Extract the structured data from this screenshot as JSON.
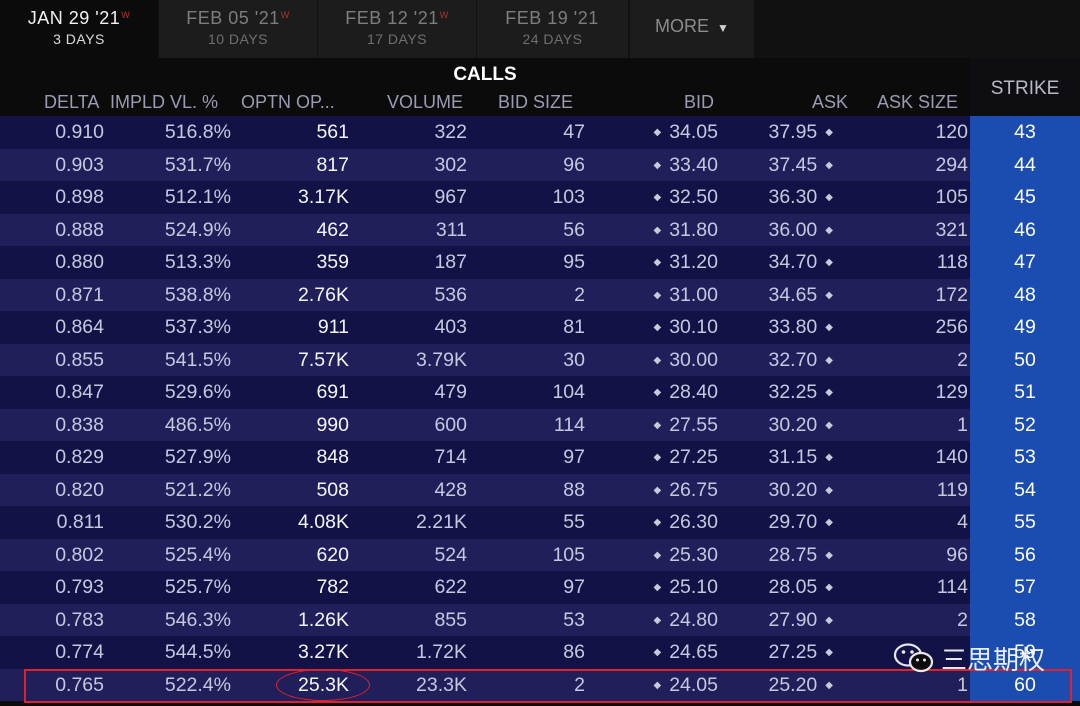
{
  "tabs": [
    {
      "date": "JAN 29 '21",
      "flag": "W",
      "days": "3 DAYS"
    },
    {
      "date": "FEB 05 '21",
      "flag": "W",
      "days": "10 DAYS"
    },
    {
      "date": "FEB 12 '21",
      "flag": "W",
      "days": "17 DAYS"
    },
    {
      "date": "FEB 19 '21",
      "flag": "",
      "days": "24 DAYS"
    }
  ],
  "more_label": "MORE",
  "section_title": "CALLS",
  "headers": {
    "delta": "DELTA",
    "impl_vol": "IMPLD VL. %",
    "open_int": "OPTN OP...",
    "volume": "VOLUME",
    "bid_size": "BID SIZE",
    "bid": "BID",
    "ask": "ASK",
    "ask_size": "ASK SIZE",
    "strike": "STRIKE"
  },
  "rows": [
    {
      "delta": "0.910",
      "iv": "516.8%",
      "oi": "561",
      "vol": "322",
      "bid_size": "47",
      "bid": "34.05",
      "ask": "37.95",
      "ask_size": "120",
      "strike": "43"
    },
    {
      "delta": "0.903",
      "iv": "531.7%",
      "oi": "817",
      "vol": "302",
      "bid_size": "96",
      "bid": "33.40",
      "ask": "37.45",
      "ask_size": "294",
      "strike": "44"
    },
    {
      "delta": "0.898",
      "iv": "512.1%",
      "oi": "3.17K",
      "vol": "967",
      "bid_size": "103",
      "bid": "32.50",
      "ask": "36.30",
      "ask_size": "105",
      "strike": "45"
    },
    {
      "delta": "0.888",
      "iv": "524.9%",
      "oi": "462",
      "vol": "311",
      "bid_size": "56",
      "bid": "31.80",
      "ask": "36.00",
      "ask_size": "321",
      "strike": "46"
    },
    {
      "delta": "0.880",
      "iv": "513.3%",
      "oi": "359",
      "vol": "187",
      "bid_size": "95",
      "bid": "31.20",
      "ask": "34.70",
      "ask_size": "118",
      "strike": "47"
    },
    {
      "delta": "0.871",
      "iv": "538.8%",
      "oi": "2.76K",
      "vol": "536",
      "bid_size": "2",
      "bid": "31.00",
      "ask": "34.65",
      "ask_size": "172",
      "strike": "48"
    },
    {
      "delta": "0.864",
      "iv": "537.3%",
      "oi": "911",
      "vol": "403",
      "bid_size": "81",
      "bid": "30.10",
      "ask": "33.80",
      "ask_size": "256",
      "strike": "49"
    },
    {
      "delta": "0.855",
      "iv": "541.5%",
      "oi": "7.57K",
      "vol": "3.79K",
      "bid_size": "30",
      "bid": "30.00",
      "ask": "32.70",
      "ask_size": "2",
      "strike": "50"
    },
    {
      "delta": "0.847",
      "iv": "529.6%",
      "oi": "691",
      "vol": "479",
      "bid_size": "104",
      "bid": "28.40",
      "ask": "32.25",
      "ask_size": "129",
      "strike": "51"
    },
    {
      "delta": "0.838",
      "iv": "486.5%",
      "oi": "990",
      "vol": "600",
      "bid_size": "114",
      "bid": "27.55",
      "ask": "30.20",
      "ask_size": "1",
      "strike": "52"
    },
    {
      "delta": "0.829",
      "iv": "527.9%",
      "oi": "848",
      "vol": "714",
      "bid_size": "97",
      "bid": "27.25",
      "ask": "31.15",
      "ask_size": "140",
      "strike": "53"
    },
    {
      "delta": "0.820",
      "iv": "521.2%",
      "oi": "508",
      "vol": "428",
      "bid_size": "88",
      "bid": "26.75",
      "ask": "30.20",
      "ask_size": "119",
      "strike": "54"
    },
    {
      "delta": "0.811",
      "iv": "530.2%",
      "oi": "4.08K",
      "vol": "2.21K",
      "bid_size": "55",
      "bid": "26.30",
      "ask": "29.70",
      "ask_size": "4",
      "strike": "55"
    },
    {
      "delta": "0.802",
      "iv": "525.4%",
      "oi": "620",
      "vol": "524",
      "bid_size": "105",
      "bid": "25.30",
      "ask": "28.75",
      "ask_size": "96",
      "strike": "56"
    },
    {
      "delta": "0.793",
      "iv": "525.7%",
      "oi": "782",
      "vol": "622",
      "bid_size": "97",
      "bid": "25.10",
      "ask": "28.05",
      "ask_size": "114",
      "strike": "57"
    },
    {
      "delta": "0.783",
      "iv": "546.3%",
      "oi": "1.26K",
      "vol": "855",
      "bid_size": "53",
      "bid": "24.80",
      "ask": "27.90",
      "ask_size": "2",
      "strike": "58"
    },
    {
      "delta": "0.774",
      "iv": "544.5%",
      "oi": "3.27K",
      "vol": "1.72K",
      "bid_size": "86",
      "bid": "24.65",
      "ask": "27.25",
      "ask_size": "",
      "strike": "59"
    },
    {
      "delta": "0.765",
      "iv": "522.4%",
      "oi": "25.3K",
      "vol": "23.3K",
      "bid_size": "2",
      "bid": "24.05",
      "ask": "25.20",
      "ask_size": "1",
      "strike": "60"
    }
  ],
  "watermark": "三思期权",
  "colors": {
    "strike_bg": "#1b4db0",
    "row_odd": "#131247",
    "row_even": "#211f5a",
    "highlight": "#e0202f"
  }
}
